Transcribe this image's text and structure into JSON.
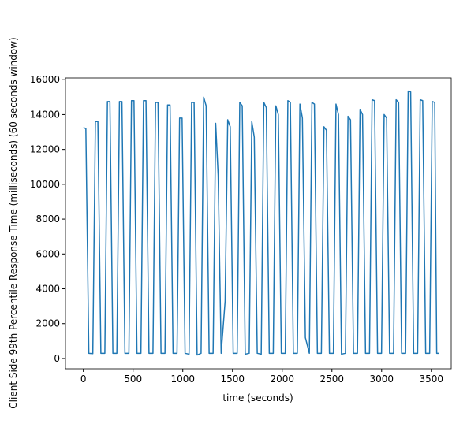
{
  "chart_data": {
    "type": "line",
    "xlabel": "time (seconds)",
    "ylabel": "Client Side 99th Percentile Response Time (milliseconds) (60 seconds window)",
    "color": "#1f77b4",
    "x": [
      0,
      25,
      55,
      95,
      121,
      146,
      176,
      216,
      242,
      267,
      297,
      337,
      363,
      388,
      418,
      458,
      484,
      509,
      539,
      579,
      605,
      630,
      660,
      700,
      726,
      751,
      781,
      821,
      847,
      872,
      902,
      942,
      968,
      993,
      1023,
      1063,
      1089,
      1114,
      1144,
      1184,
      1210,
      1235,
      1265,
      1305,
      1331,
      1356,
      1386,
      1426,
      1452,
      1477,
      1507,
      1547,
      1573,
      1598,
      1628,
      1668,
      1694,
      1719,
      1749,
      1789,
      1815,
      1840,
      1870,
      1910,
      1936,
      1961,
      1991,
      2031,
      2057,
      2082,
      2112,
      2152,
      2178,
      2203,
      2233,
      2273,
      2299,
      2324,
      2354,
      2394,
      2420,
      2445,
      2475,
      2515,
      2541,
      2566,
      2596,
      2636,
      2662,
      2687,
      2717,
      2757,
      2783,
      2808,
      2838,
      2878,
      2904,
      2929,
      2959,
      2999,
      3025,
      3050,
      3080,
      3120,
      3146,
      3171,
      3201,
      3241,
      3267,
      3292,
      3322,
      3362,
      3388,
      3413,
      3443,
      3483,
      3509,
      3534,
      3554,
      3580
    ],
    "values": [
      13250,
      13200,
      300,
      280,
      13600,
      13600,
      300,
      300,
      14750,
      14750,
      300,
      300,
      14750,
      14750,
      300,
      300,
      14800,
      14800,
      300,
      300,
      14800,
      14800,
      300,
      300,
      14700,
      14700,
      300,
      300,
      14550,
      14550,
      300,
      300,
      13800,
      13800,
      300,
      250,
      14700,
      14700,
      200,
      300,
      15000,
      14500,
      300,
      300,
      13500,
      10500,
      300,
      3300,
      13700,
      13300,
      300,
      300,
      14700,
      14500,
      250,
      300,
      13600,
      12700,
      300,
      250,
      14700,
      14400,
      300,
      300,
      14500,
      14000,
      300,
      300,
      14800,
      14700,
      300,
      300,
      14600,
      13800,
      1200,
      300,
      14700,
      14600,
      300,
      300,
      13300,
      13100,
      300,
      300,
      14600,
      14000,
      250,
      300,
      13900,
      13700,
      300,
      300,
      14300,
      14000,
      300,
      300,
      14850,
      14800,
      300,
      300,
      14000,
      13800,
      300,
      300,
      14850,
      14700,
      300,
      300,
      15350,
      15300,
      300,
      300,
      14850,
      14800,
      300,
      300,
      14750,
      14700,
      300,
      300
    ],
    "xlim": [
      -180,
      3700
    ],
    "ylim": [
      -590,
      16100
    ],
    "xticks": [
      0,
      500,
      1000,
      1500,
      2000,
      2500,
      3000,
      3500
    ],
    "yticks": [
      0,
      2000,
      4000,
      6000,
      8000,
      10000,
      12000,
      14000,
      16000
    ]
  }
}
